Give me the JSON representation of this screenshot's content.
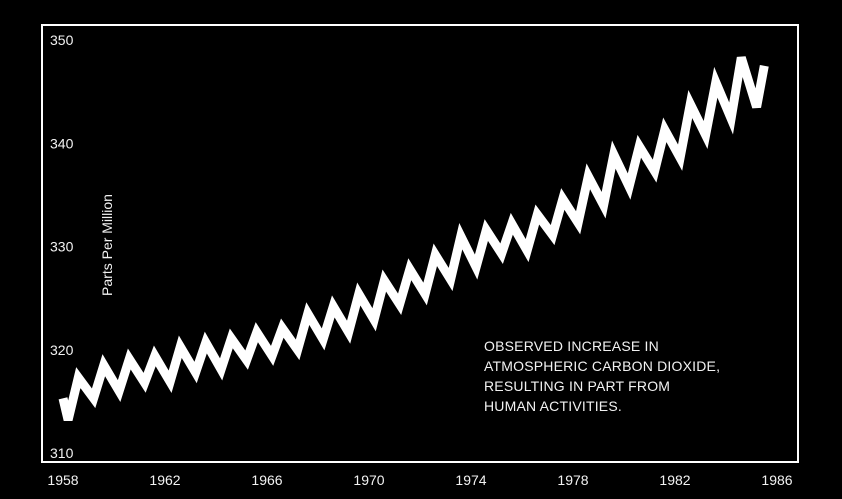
{
  "chart_data": {
    "type": "line",
    "title": "",
    "xlabel": "",
    "ylabel": "Parts Per Million",
    "xlim": [
      1958,
      1986
    ],
    "ylim": [
      310,
      350
    ],
    "grid": false,
    "legend": "none",
    "x_ticks": [
      "1958",
      "1962",
      "1966",
      "1970",
      "1974",
      "1978",
      "1982",
      "1986"
    ],
    "y_ticks": [
      "310",
      "320",
      "330",
      "340",
      "350"
    ],
    "annotation": [
      "OBSERVED INCREASE IN",
      "ATMOSPHERIC CARBON DIOXIDE,",
      "RESULTING IN PART FROM",
      "HUMAN ACTIVITIES."
    ],
    "colors": {
      "background": "#000000",
      "line": "#ffffff",
      "frame": "#ffffff"
    },
    "series": [
      {
        "x": [
          1958.0,
          1958.2,
          1958.6,
          1959.2,
          1959.6,
          1960.2,
          1960.6,
          1961.2,
          1961.6,
          1962.2,
          1962.6,
          1963.2,
          1963.6,
          1964.2,
          1964.6,
          1965.2,
          1965.6,
          1966.2,
          1966.6,
          1967.2,
          1967.6,
          1968.2,
          1968.6,
          1969.2,
          1969.6,
          1970.2,
          1970.6,
          1971.2,
          1971.6,
          1972.2,
          1972.6,
          1973.2,
          1973.6,
          1974.2,
          1974.6,
          1975.2,
          1975.6,
          1976.2,
          1976.6,
          1977.2,
          1977.6,
          1978.2,
          1978.6,
          1979.2,
          1979.6,
          1980.2,
          1980.6,
          1981.2,
          1981.6,
          1982.2,
          1982.6,
          1983.2,
          1983.6,
          1984.2,
          1984.6,
          1985.2,
          1985.5
        ],
        "values": [
          315.3,
          313.2,
          317.3,
          315.3,
          318.5,
          316.0,
          319.1,
          316.8,
          319.4,
          316.9,
          320.3,
          317.8,
          320.7,
          318.1,
          321.1,
          319.0,
          321.7,
          319.4,
          322.1,
          320.0,
          323.5,
          321.0,
          324.2,
          321.7,
          325.4,
          322.9,
          326.7,
          324.4,
          327.8,
          325.4,
          329.2,
          326.8,
          331.0,
          328.0,
          331.6,
          329.3,
          332.2,
          329.6,
          333.1,
          331.1,
          334.6,
          332.3,
          336.8,
          334.0,
          338.9,
          335.8,
          339.7,
          337.3,
          341.3,
          338.6,
          343.8,
          340.8,
          345.9,
          342.4,
          348.3,
          343.5,
          347.5
        ]
      }
    ]
  }
}
